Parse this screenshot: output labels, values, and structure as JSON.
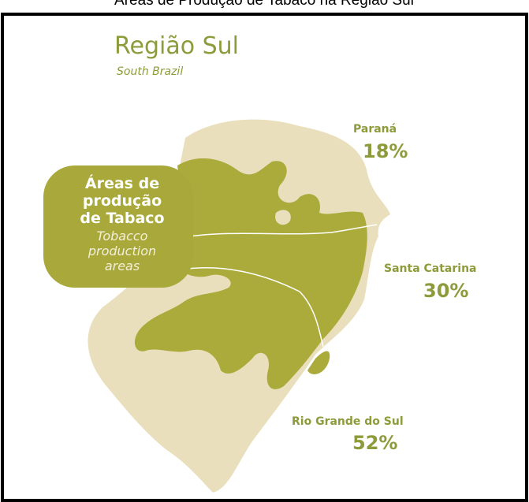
{
  "title": "Áreas de Produção de Tabaco na Região Sul",
  "header": {
    "title": "Região Sul",
    "subtitle": "South Brazil"
  },
  "badge": {
    "lines": [
      "Áreas de",
      "produção",
      "de Tabaco"
    ],
    "subtitle_lines": [
      "Tobacco",
      "production",
      "areas"
    ]
  },
  "regions": [
    {
      "name": "Paraná",
      "share": "18%"
    },
    {
      "name": "Santa Catarina",
      "share": "30%"
    },
    {
      "name": "Rio Grande do Sul",
      "share": "52%"
    }
  ]
}
